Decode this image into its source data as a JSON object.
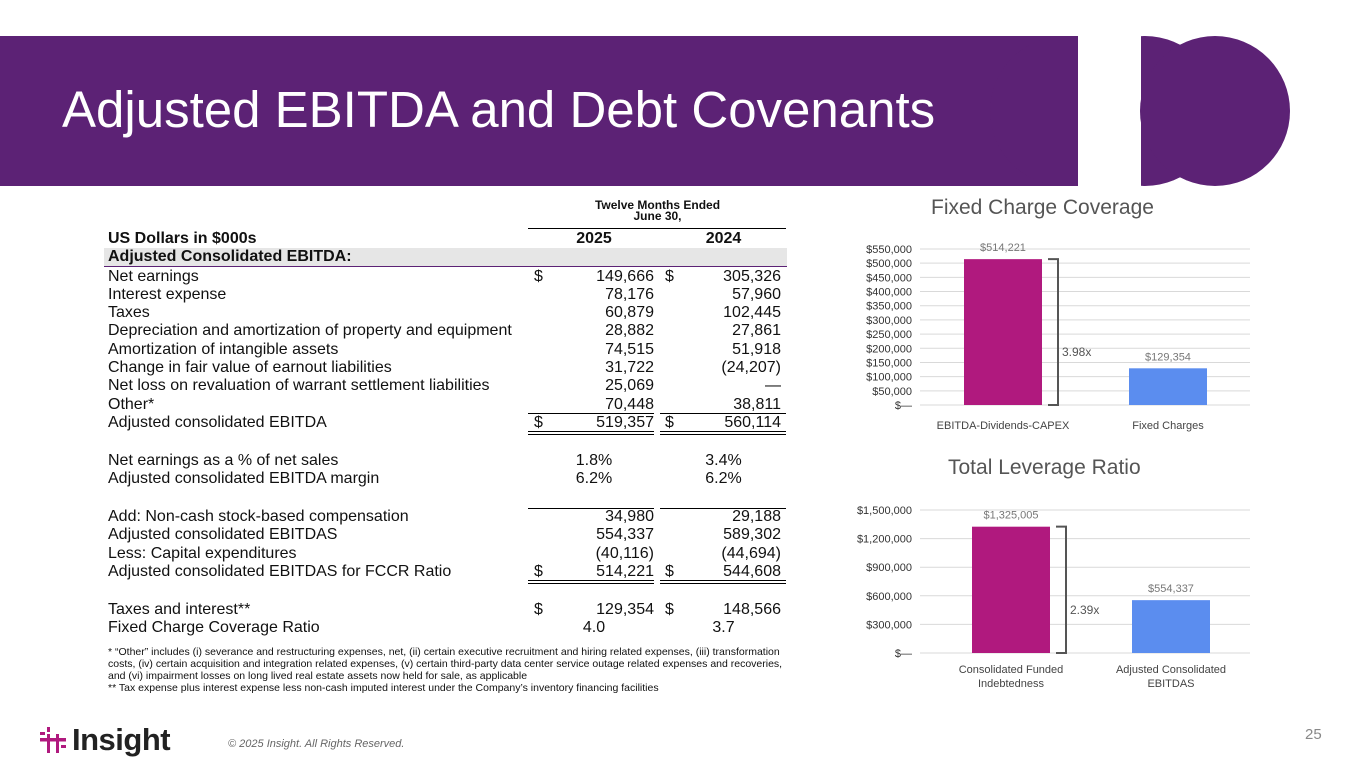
{
  "header": {
    "title": "Adjusted EBITDA and Debt Covenants"
  },
  "table": {
    "period_line1": "Twelve Months Ended",
    "period_line2": "June 30,",
    "units_label": "US Dollars in $000s",
    "col1": "2025",
    "col2": "2024",
    "section": "Adjusted Consolidated EBITDA:",
    "rows": [
      {
        "label": "Net earnings",
        "v1": "149,666",
        "v2": "305,326",
        "dollar": true
      },
      {
        "label": "Interest expense",
        "v1": "78,176",
        "v2": "57,960"
      },
      {
        "label": "Taxes",
        "v1": "60,879",
        "v2": "102,445"
      },
      {
        "label": "Depreciation and amortization of property and equipment",
        "v1": "28,882",
        "v2": "27,861"
      },
      {
        "label": "Amortization of intangible assets",
        "v1": "74,515",
        "v2": "51,918"
      },
      {
        "label": "Change in fair value of earnout liabilities",
        "v1": "31,722",
        "v2": "(24,207)"
      },
      {
        "label": "Net loss on revaluation of warrant settlement liabilities",
        "v1": "25,069",
        "v2": "—"
      },
      {
        "label": "Other*",
        "v1": "70,448",
        "v2": "38,811"
      },
      {
        "label": "Adjusted consolidated EBITDA",
        "v1": "519,357",
        "v2": "560,114",
        "dollar": true
      },
      {
        "label": "Net earnings as a % of net sales",
        "v1": "1.8%",
        "v2": "3.4%"
      },
      {
        "label": "Adjusted consolidated EBITDA margin",
        "v1": "6.2%",
        "v2": "6.2%"
      },
      {
        "label": "Add: Non-cash stock-based compensation",
        "v1": "34,980",
        "v2": "29,188"
      },
      {
        "label": "Adjusted consolidated EBITDAS",
        "v1": "554,337",
        "v2": "589,302"
      },
      {
        "label": "Less: Capital expenditures",
        "v1": "(40,116)",
        "v2": "(44,694)"
      },
      {
        "label": "Adjusted consolidated EBITDAS for FCCR Ratio",
        "v1": "514,221",
        "v2": "544,608",
        "dollar": true
      },
      {
        "label": "Taxes and interest**",
        "v1": "129,354",
        "v2": "148,566",
        "dollar": true
      },
      {
        "label": "Fixed Charge Coverage Ratio",
        "v1": "4.0",
        "v2": "3.7"
      }
    ],
    "dollar_sign": "$",
    "note1": "* “Other” includes (i) severance and restructuring expenses, net, (ii) certain executive recruitment and hiring related expenses, (iii) transformation costs, (iv) certain acquisition and integration related expenses, (v) certain third-party data center service outage related expenses and recoveries, and (vi) impairment losses on long lived real estate assets now held for sale, as applicable",
    "note2": "** Tax expense plus interest expense less non-cash imputed interest under the Company’s inventory financing facilities"
  },
  "chart_data": [
    {
      "type": "bar",
      "title": "Fixed Charge Coverage",
      "categories": [
        "EBITDA-Dividends-CAPEX",
        "Fixed Charges"
      ],
      "values": [
        514221,
        129354
      ],
      "data_labels": [
        "$514,221",
        "$129,354"
      ],
      "ylim": [
        0,
        550000
      ],
      "ytick_labels": [
        "$—",
        "$50,000",
        "$100,000",
        "$150,000",
        "$200,000",
        "$250,000",
        "$300,000",
        "$350,000",
        "$400,000",
        "$450,000",
        "$500,000",
        "$550,000"
      ],
      "ratio_label": "3.98x",
      "colors": [
        "#b0197e",
        "#5b8def"
      ],
      "grid": true
    },
    {
      "type": "bar",
      "title": "Total Leverage Ratio",
      "categories": [
        "Consolidated Funded Indebtedness",
        "Adjusted Consolidated EBITDAS"
      ],
      "values": [
        1325005,
        554337
      ],
      "data_labels": [
        "$1,325,005",
        "$554,337"
      ],
      "ylim": [
        0,
        1500000
      ],
      "ytick_labels": [
        "$—",
        "$300,000",
        "$600,000",
        "$900,000",
        "$1,200,000",
        "$1,500,000"
      ],
      "ratio_label": "2.39x",
      "colors": [
        "#b0197e",
        "#5b8def"
      ],
      "grid": true
    }
  ],
  "footer": {
    "brand": "Insight",
    "copyright": "© 2025 Insight. All Rights Reserved.",
    "page": "25"
  },
  "colors": {
    "brand_purple": "#5c2275",
    "magenta": "#b0197e",
    "blue": "#5b8def"
  }
}
